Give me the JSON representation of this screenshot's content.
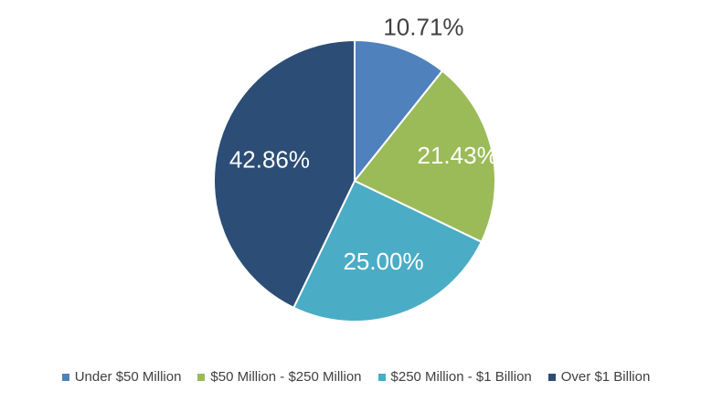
{
  "chart_data": {
    "type": "pie",
    "categories": [
      "Under $50 Million",
      "$50 Million - $250 Million",
      "$250 Million - $1 Billion",
      "Over $1 Billion"
    ],
    "values": [
      10.71,
      21.43,
      25.0,
      42.86
    ],
    "labels": [
      "10.71%",
      "21.43%",
      "25.00%",
      "42.86%"
    ],
    "colors": [
      "#4F81BD",
      "#9BBB59",
      "#4BACC6",
      "#2C4D75"
    ],
    "label_colors": [
      "#404040",
      "#ffffff",
      "#ffffff",
      "#ffffff"
    ],
    "start_angle_deg": 0,
    "direction": "clockwise",
    "legend_position": "bottom"
  },
  "legend": {
    "items": [
      {
        "label": "Under $50 Million",
        "color": "#4F81BD"
      },
      {
        "label": "$50 Million - $250 Million",
        "color": "#9BBB59"
      },
      {
        "label": "$250 Million - $1 Billion",
        "color": "#4BACC6"
      },
      {
        "label": "Over $1 Billion",
        "color": "#2C4D75"
      }
    ]
  }
}
